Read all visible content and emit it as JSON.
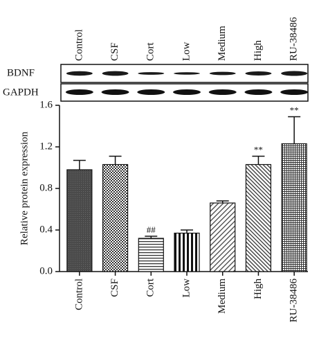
{
  "chart_data": {
    "type": "bar",
    "blot": {
      "lane_labels": [
        "Control",
        "CSF",
        "Cort",
        "Low",
        "Medium",
        "High",
        "RU-38486"
      ],
      "rows": [
        "BDNF",
        "GAPDH"
      ]
    },
    "y_label": "Relative protein expression",
    "categories": [
      "Control",
      "CSF",
      "Cort",
      "Low",
      "Medium",
      "High",
      "RU-38486"
    ],
    "values": [
      0.98,
      1.03,
      0.32,
      0.37,
      0.66,
      1.03,
      1.23
    ],
    "errors": [
      0.09,
      0.08,
      0.02,
      0.03,
      0.02,
      0.08,
      0.26
    ],
    "annotations": [
      null,
      null,
      "##",
      null,
      null,
      "**",
      "**"
    ],
    "patterns": [
      "dark",
      "checker",
      "hlines",
      "vlines",
      "diag",
      "diag-back",
      "grid"
    ],
    "ylim": [
      0,
      1.6
    ],
    "yticks": [
      {
        "value": 0,
        "label": "0.0"
      },
      0.4,
      0.8,
      1.2,
      1.6
    ]
  }
}
